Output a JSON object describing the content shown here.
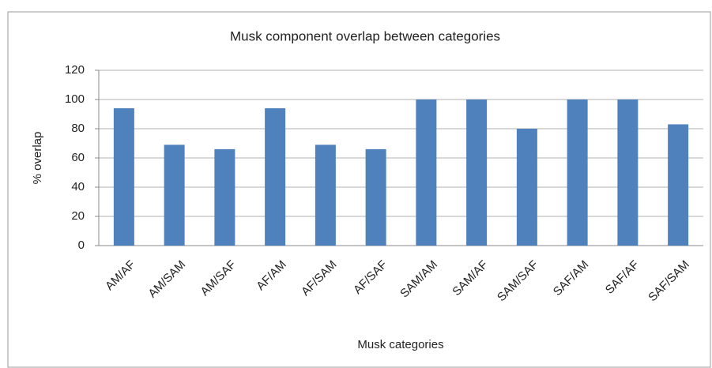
{
  "chart_data": {
    "type": "bar",
    "title": "Musk component overlap between categories",
    "x_label": "Musk categories",
    "y_label": "% overlap",
    "categories": [
      "AM/AF",
      "AM/SAM",
      "AM/SAF",
      "AF/AM",
      "AF/SAM",
      "AF/SAF",
      "SAM/AM",
      "SAM/AF",
      "SAM/SAF",
      "SAF/AM",
      "SAF/AF",
      "SAF/SAM"
    ],
    "values": [
      94,
      69,
      66,
      94,
      69,
      66,
      100,
      100,
      80,
      100,
      100,
      83
    ],
    "color": "#4f81bd",
    "ylim": [
      0,
      120
    ],
    "yticks": [
      0,
      20,
      40,
      60,
      80,
      100,
      120
    ],
    "grid": true
  }
}
